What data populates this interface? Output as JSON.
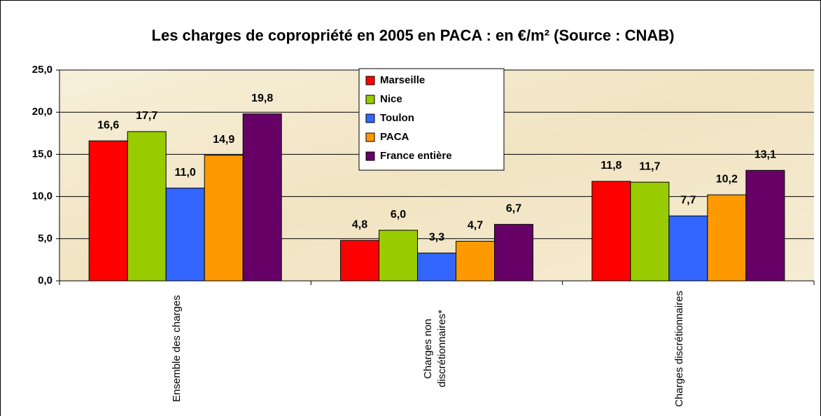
{
  "chart_data": {
    "type": "bar",
    "title": "Les charges de copropriété en 2005 en PACA : en €/m² (Source : CNAB)",
    "categories": [
      "Ensemble des charges",
      "Charges non discrétionnaires*",
      "Charges discrétionnaires"
    ],
    "series": [
      {
        "name": "Marseille",
        "color": "#ff0000",
        "values": [
          16.6,
          4.8,
          11.8
        ],
        "value_labels": [
          "16,6",
          "4,8",
          "11,8"
        ]
      },
      {
        "name": "Nice",
        "color": "#99cc00",
        "values": [
          17.7,
          6.0,
          11.7
        ],
        "value_labels": [
          "17,7",
          "6,0",
          "11,7"
        ]
      },
      {
        "name": "Toulon",
        "color": "#3366ff",
        "values": [
          11.0,
          3.3,
          7.7
        ],
        "value_labels": [
          "11,0",
          "3,3",
          "7,7"
        ]
      },
      {
        "name": "PACA",
        "color": "#ff9900",
        "values": [
          14.9,
          4.7,
          10.2
        ],
        "value_labels": [
          "14,9",
          "4,7",
          "10,2"
        ]
      },
      {
        "name": "France entière",
        "color": "#660066",
        "values": [
          19.8,
          6.7,
          13.1
        ],
        "value_labels": [
          "19,8",
          "6,7",
          "13,1"
        ]
      }
    ],
    "ylim": [
      0,
      25
    ],
    "yticks": [
      {
        "value": 0,
        "label": "0,0"
      },
      {
        "value": 5,
        "label": "5,0"
      },
      {
        "value": 10,
        "label": "10,0"
      },
      {
        "value": 15,
        "label": "15,0"
      },
      {
        "value": 20,
        "label": "20,0"
      },
      {
        "value": 25,
        "label": "25,0"
      }
    ],
    "grid": true,
    "legend": "top"
  }
}
